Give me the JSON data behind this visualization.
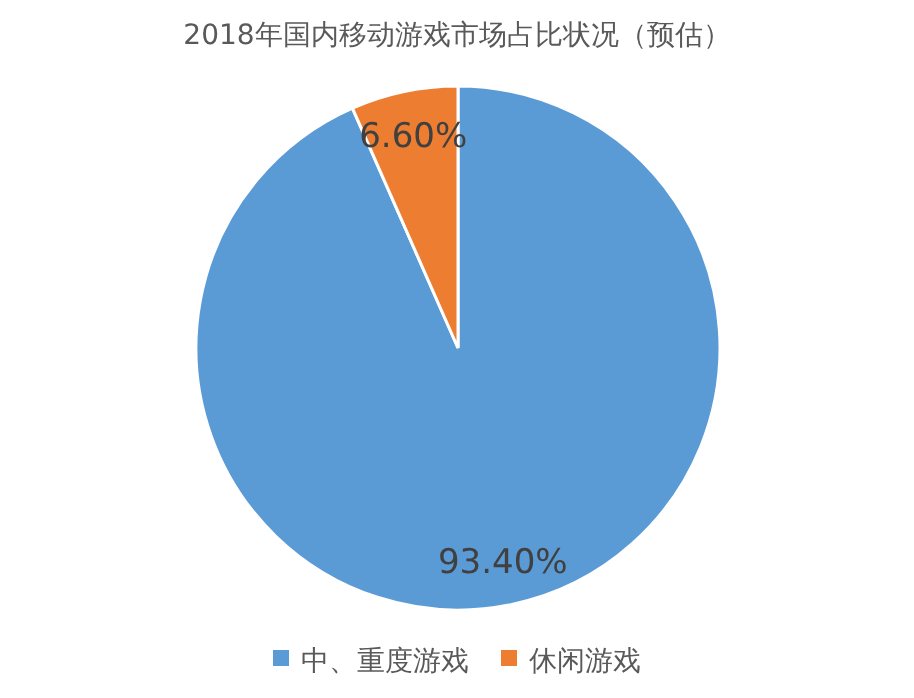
{
  "chart_data": {
    "type": "pie",
    "title": "2018年国内移动游戏市场占比状况（预估）",
    "categories": [
      "中、重度游戏",
      "休闲游戏"
    ],
    "values": [
      93.4,
      6.6
    ],
    "colors": [
      "#5b9bd5",
      "#ed7d31"
    ],
    "value_labels": [
      "93.40%",
      "6.60%"
    ],
    "legend": "bottom"
  }
}
